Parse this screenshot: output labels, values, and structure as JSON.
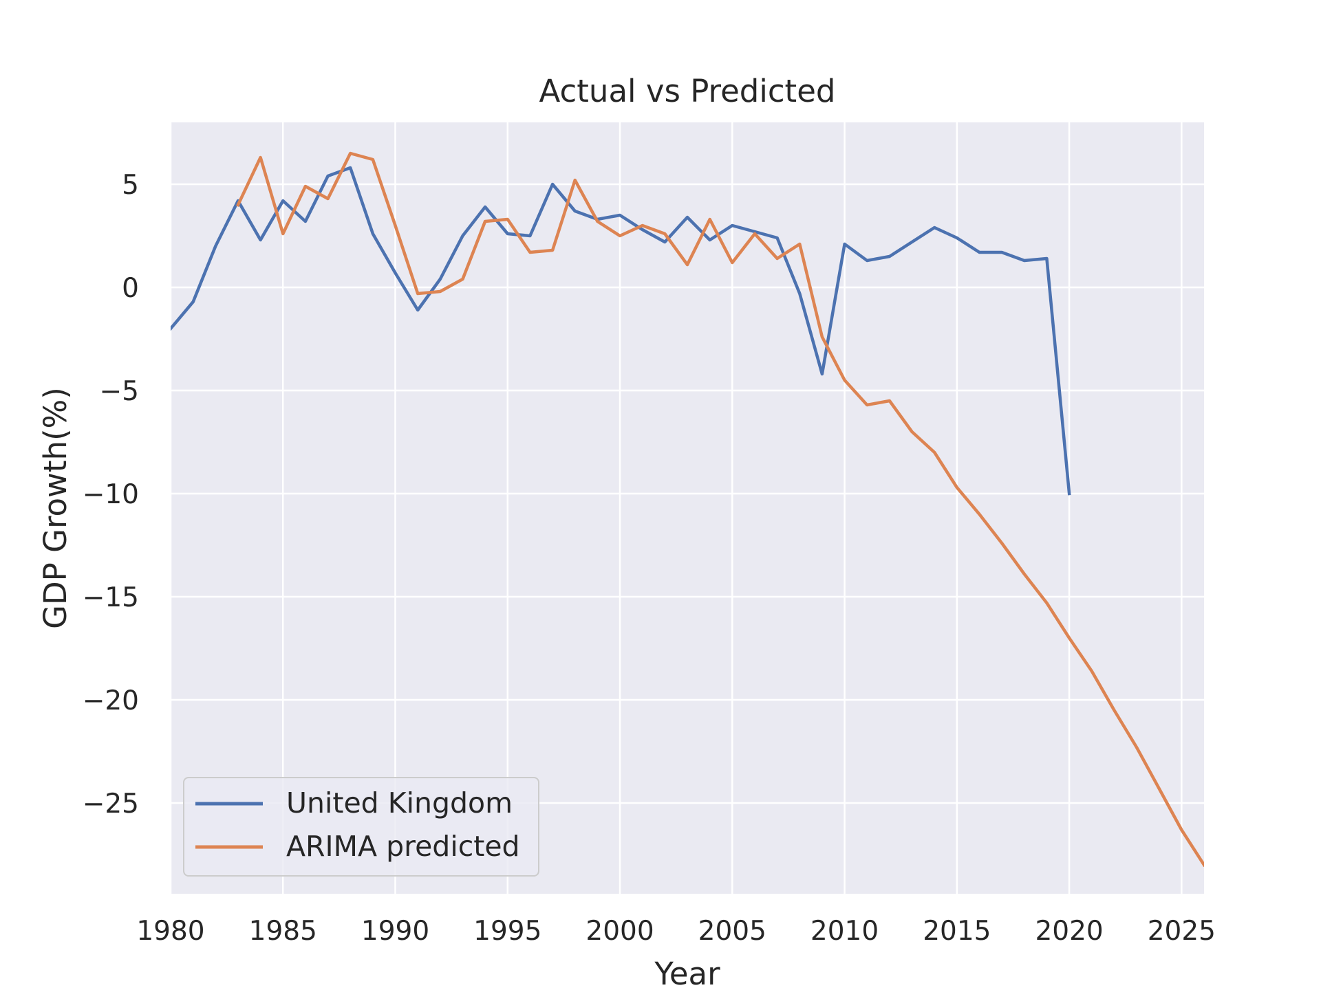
{
  "chart_data": {
    "type": "line",
    "title": "Actual vs Predicted",
    "xlabel": "Year",
    "ylabel": "GDP Growth(%)",
    "xlim": [
      1980,
      2026
    ],
    "ylim": [
      -29.4,
      8
    ],
    "xticks": [
      1980,
      1985,
      1990,
      1995,
      2000,
      2005,
      2010,
      2015,
      2020,
      2025
    ],
    "yticks": [
      5,
      0,
      -5,
      -10,
      -15,
      -20,
      -25
    ],
    "ytick_labels": [
      "5",
      "0",
      "−5",
      "−10",
      "−15",
      "−20",
      "−25"
    ],
    "grid": true,
    "legend_position": "lower-left",
    "series": [
      {
        "name": "United Kingdom",
        "color": "#4c72b0",
        "x": [
          1980,
          1981,
          1982,
          1983,
          1984,
          1985,
          1986,
          1987,
          1988,
          1989,
          1990,
          1991,
          1992,
          1993,
          1994,
          1995,
          1996,
          1997,
          1998,
          1999,
          2000,
          2001,
          2002,
          2003,
          2004,
          2005,
          2006,
          2007,
          2008,
          2009,
          2010,
          2011,
          2012,
          2013,
          2014,
          2015,
          2016,
          2017,
          2018,
          2019,
          2020
        ],
        "values": [
          -2.0,
          -0.7,
          2.0,
          4.2,
          2.3,
          4.2,
          3.2,
          5.4,
          5.8,
          2.6,
          0.7,
          -1.1,
          0.4,
          2.5,
          3.9,
          2.6,
          2.5,
          5.0,
          3.7,
          3.3,
          3.5,
          2.8,
          2.2,
          3.4,
          2.3,
          3.0,
          2.7,
          2.4,
          -0.3,
          -4.2,
          2.1,
          1.3,
          1.5,
          2.2,
          2.9,
          2.4,
          1.7,
          1.7,
          1.3,
          1.4,
          -10.0
        ]
      },
      {
        "name": "ARIMA predicted",
        "color": "#dd8452",
        "x": [
          1983,
          1984,
          1985,
          1986,
          1987,
          1988,
          1989,
          1990,
          1991,
          1992,
          1993,
          1994,
          1995,
          1996,
          1997,
          1998,
          1999,
          2000,
          2001,
          2002,
          2003,
          2004,
          2005,
          2006,
          2007,
          2008,
          2009,
          2010,
          2011,
          2012,
          2013,
          2014,
          2015,
          2016,
          2017,
          2018,
          2019,
          2020,
          2021,
          2022,
          2023,
          2024,
          2025,
          2026
        ],
        "values": [
          4.0,
          6.3,
          2.6,
          4.9,
          4.3,
          6.5,
          6.2,
          3.0,
          -0.3,
          -0.2,
          0.4,
          3.2,
          3.3,
          1.7,
          1.8,
          5.2,
          3.2,
          2.5,
          3.0,
          2.6,
          1.1,
          3.3,
          1.2,
          2.6,
          1.4,
          2.1,
          -2.4,
          -4.5,
          -5.7,
          -5.5,
          -7.0,
          -8.0,
          -9.7,
          -11.0,
          -12.4,
          -13.9,
          -15.3,
          -17.0,
          -18.6,
          -20.5,
          -22.3,
          -24.3,
          -26.3,
          -28.0
        ]
      }
    ]
  }
}
